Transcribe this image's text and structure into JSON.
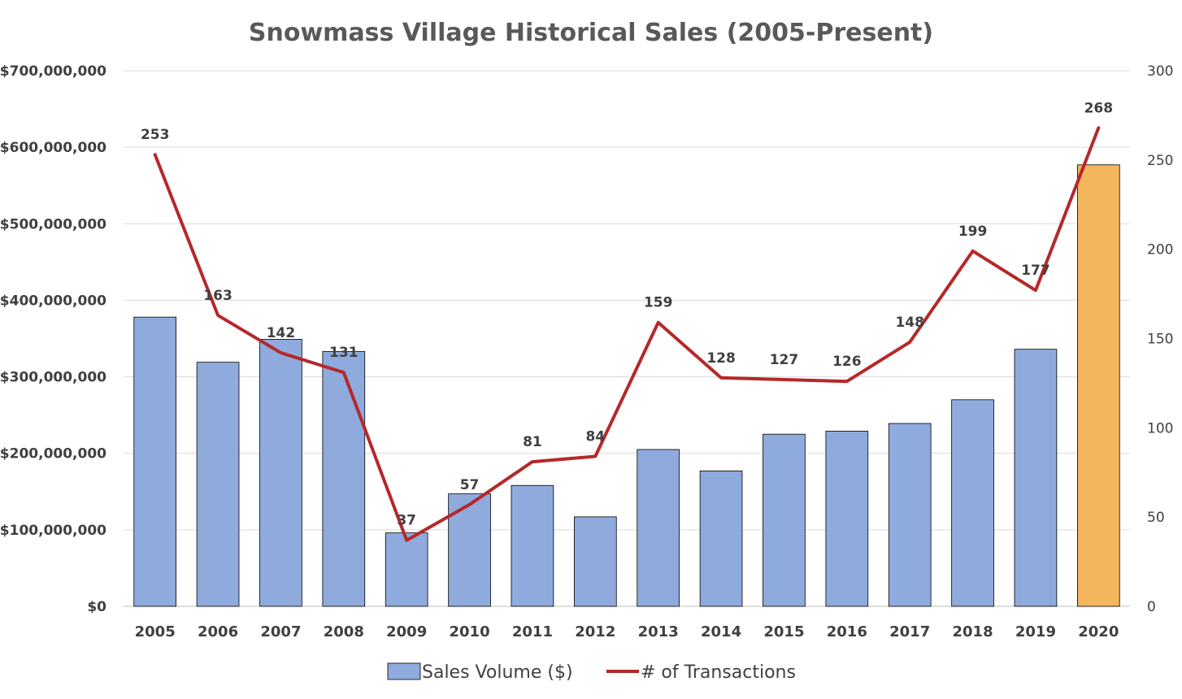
{
  "chart_data": {
    "type": "bar+line",
    "title": "Snowmass Village Historical Sales (2005-Present)",
    "categories": [
      "2005",
      "2006",
      "2007",
      "2008",
      "2009",
      "2010",
      "2011",
      "2012",
      "2013",
      "2014",
      "2015",
      "2016",
      "2017",
      "2018",
      "2019",
      "2020"
    ],
    "series": [
      {
        "name": "Sales Volume ($)",
        "type": "bar",
        "axis": "left",
        "values": [
          378000000,
          319000000,
          349000000,
          333000000,
          96000000,
          147000000,
          158000000,
          117000000,
          205000000,
          177000000,
          225000000,
          229000000,
          239000000,
          270000000,
          336000000,
          577000000
        ],
        "color": "#8faadc",
        "highlight_color": "#f4b65c",
        "highlight_index": 15
      },
      {
        "name": "# of Transactions",
        "type": "line",
        "axis": "right",
        "values": [
          253,
          163,
          142,
          131,
          37,
          57,
          81,
          84,
          159,
          128,
          127,
          126,
          148,
          199,
          177,
          268
        ],
        "color": "#b5282a"
      }
    ],
    "y_left": {
      "min": 0,
      "max": 700000000,
      "step": 100000000,
      "tick_labels": [
        "$0",
        "$100,000,000",
        "$200,000,000",
        "$300,000,000",
        "$400,000,000",
        "$500,000,000",
        "$600,000,000",
        "$700,000,000"
      ]
    },
    "y_right": {
      "min": 0,
      "max": 300,
      "step": 50,
      "tick_labels": [
        "0",
        "50",
        "100",
        "150",
        "200",
        "250",
        "300"
      ]
    },
    "grid": true,
    "legend": {
      "position": "bottom",
      "entries": [
        "Sales Volume ($)",
        "# of Transactions"
      ]
    }
  }
}
